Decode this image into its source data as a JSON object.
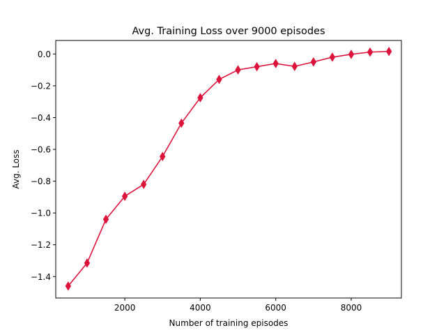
{
  "chart_data": {
    "type": "line",
    "title": "Avg. Training Loss over 9000 episodes",
    "xlabel": "Number of training episodes",
    "ylabel": "Avg. Loss",
    "xlim": [
      170,
      9330
    ],
    "ylim": [
      -1.535,
      0.085
    ],
    "xticks": [
      2000,
      4000,
      6000,
      8000
    ],
    "yticks": [
      -1.4,
      -1.2,
      -1.0,
      -0.8,
      -0.6,
      -0.4,
      -0.2,
      0.0
    ],
    "xtick_labels": [
      "2000",
      "4000",
      "6000",
      "8000"
    ],
    "ytick_labels": [
      "−1.4",
      "−1.2",
      "−1.0",
      "−0.8",
      "−0.6",
      "−0.4",
      "−0.2",
      "0.0"
    ],
    "grid": false,
    "series": [
      {
        "color": "#dc143c",
        "marker": "thin-diamond",
        "x": [
          500,
          1000,
          1500,
          2000,
          2500,
          3000,
          3500,
          4000,
          4500,
          5000,
          5500,
          6000,
          6500,
          7000,
          7500,
          8000,
          8500,
          9000
        ],
        "y": [
          -1.46,
          -1.315,
          -1.04,
          -0.895,
          -0.82,
          -0.645,
          -0.435,
          -0.275,
          -0.16,
          -0.1,
          -0.08,
          -0.06,
          -0.078,
          -0.05,
          -0.02,
          -0.002,
          0.012,
          0.016
        ]
      }
    ]
  }
}
